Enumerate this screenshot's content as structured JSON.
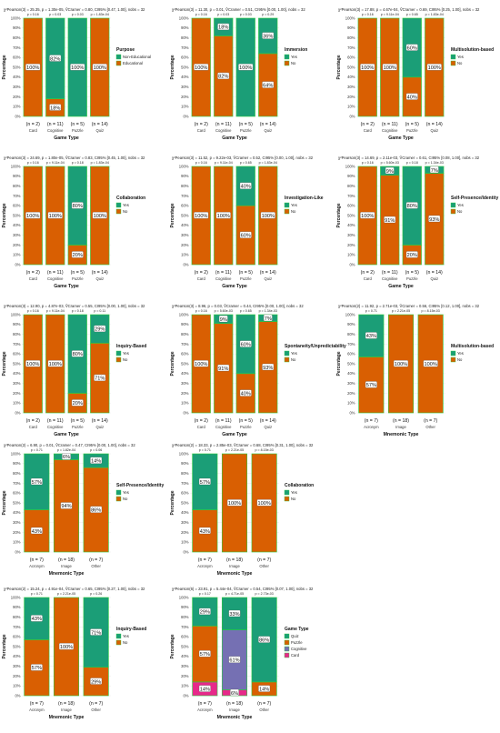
{
  "colors": {
    "Yes": "#1b9e77",
    "No": "#d95f02",
    "Quiz": "#1b9e77",
    "Puzzle": "#d95f02",
    "Cognitive": "#7570b3",
    "Card": "#e7298a",
    "Non-Educational": "#1b9e77",
    "Educational": "#d95f02",
    "bar_stroke": "#2ecc40"
  },
  "chart_data": [
    {
      "type": "bar",
      "stacked": true,
      "xlabel": "Game Type",
      "ylabel": "Percentage",
      "subtitle": "χ²Pearson(3) = 25.35, p = 1.30e-05, V̂Cramer = 0.80, CI95% [0.47, 1.00], nobs = 32",
      "categories": [
        "Card",
        "Cognitive",
        "Puzzle",
        "Quiz"
      ],
      "n_labels": [
        "(n = 2)",
        "(n = 11)",
        "(n = 5)",
        "(n = 14)"
      ],
      "p_labels": [
        "p = 0.16",
        "p = 0.03",
        "p = 0.03",
        "p = 1.83e-04"
      ],
      "legend_title": "Purpose",
      "series": [
        {
          "name": "Non-Educational",
          "values": [
            0,
            82,
            100,
            0
          ],
          "labels": [
            "",
            "82%",
            "100%",
            ""
          ]
        },
        {
          "name": "Educational",
          "values": [
            100,
            18,
            0,
            100
          ],
          "labels": [
            "100%",
            "18%",
            "",
            "100%"
          ]
        }
      ],
      "ylim": [
        0,
        100
      ],
      "yticks": [
        "0%",
        "10%",
        "20%",
        "30%",
        "40%",
        "50%",
        "60%",
        "70%",
        "80%",
        "90%",
        "100%"
      ]
    },
    {
      "type": "bar",
      "stacked": true,
      "xlabel": "Game Type",
      "ylabel": "Percentage",
      "subtitle": "χ²Pearson(3) = 11.30, p = 0.01, V̂Cramer = 0.51, CI95% [0.00, 1.00], nobs = 32",
      "categories": [
        "Card",
        "Cognitive",
        "Puzzle",
        "Quiz"
      ],
      "n_labels": [
        "(n = 2)",
        "(n = 11)",
        "(n = 5)",
        "(n = 14)"
      ],
      "p_labels": [
        "p = 0.16",
        "p = 0.03",
        "p = 0.03",
        "p = 0.29"
      ],
      "legend_title": "Immersion",
      "series": [
        {
          "name": "Yes",
          "values": [
            0,
            18,
            100,
            36
          ],
          "labels": [
            "",
            "18%",
            "100%",
            "36%"
          ]
        },
        {
          "name": "No",
          "values": [
            100,
            82,
            0,
            64
          ],
          "labels": [
            "100%",
            "82%",
            "",
            "64%"
          ]
        }
      ],
      "ylim": [
        0,
        100
      ],
      "yticks": [
        "0%",
        "10%",
        "20%",
        "30%",
        "40%",
        "50%",
        "60%",
        "70%",
        "80%",
        "90%",
        "100%"
      ]
    },
    {
      "type": "bar",
      "stacked": true,
      "xlabel": "Game Type",
      "ylabel": "Percentage",
      "subtitle": "χ²Pearson(3) = 17.88, p = 4.67e-04, V̂Cramer = 0.69, CI95% [0.25, 1.00], nobs = 32",
      "categories": [
        "Card",
        "Cognitive",
        "Puzzle",
        "Quiz"
      ],
      "n_labels": [
        "(n = 2)",
        "(n = 11)",
        "(n = 5)",
        "(n = 14)"
      ],
      "p_labels": [
        "p = 0.16",
        "p = 9.11e-04",
        "p = 0.65",
        "p = 1.83e-04"
      ],
      "legend_title": "Multisolution-based",
      "series": [
        {
          "name": "Yes",
          "values": [
            0,
            0,
            60,
            0
          ],
          "labels": [
            "",
            "",
            "60%",
            ""
          ]
        },
        {
          "name": "No",
          "values": [
            100,
            100,
            40,
            100
          ],
          "labels": [
            "100%",
            "100%",
            "40%",
            "100%"
          ]
        }
      ],
      "ylim": [
        0,
        100
      ],
      "yticks": [
        "0%",
        "10%",
        "20%",
        "30%",
        "40%",
        "50%",
        "60%",
        "70%",
        "80%",
        "90%",
        "100%"
      ]
    },
    {
      "type": "bar",
      "stacked": true,
      "xlabel": "Game Type",
      "ylabel": "Percentage",
      "subtitle": "χ²Pearson(3) = 24.69, p = 1.80e-05, V̂Cramer = 0.83, CI95% [0.45, 1.00], nobs = 32",
      "categories": [
        "Card",
        "Cognitive",
        "Puzzle",
        "Quiz"
      ],
      "n_labels": [
        "(n = 2)",
        "(n = 11)",
        "(n = 5)",
        "(n = 14)"
      ],
      "p_labels": [
        "p = 0.16",
        "p = 9.11e-04",
        "p = 0.18",
        "p = 1.83e-04"
      ],
      "legend_title": "Collaboration",
      "series": [
        {
          "name": "Yes",
          "values": [
            0,
            0,
            80,
            0
          ],
          "labels": [
            "",
            "",
            "80%",
            ""
          ]
        },
        {
          "name": "No",
          "values": [
            100,
            100,
            20,
            100
          ],
          "labels": [
            "100%",
            "100%",
            "20%",
            "100%"
          ]
        }
      ],
      "ylim": [
        0,
        100
      ],
      "yticks": [
        "0%",
        "10%",
        "20%",
        "30%",
        "40%",
        "50%",
        "60%",
        "70%",
        "80%",
        "90%",
        "100%"
      ]
    },
    {
      "type": "bar",
      "stacked": true,
      "xlabel": "Game Type",
      "ylabel": "Percentage",
      "subtitle": "χ²Pearson(3) = 11.52, p = 9.22e-03, V̂Cramer = 0.52, CI95% [0.00, 1.00], nobs = 32",
      "categories": [
        "Card",
        "Cognitive",
        "Puzzle",
        "Quiz"
      ],
      "n_labels": [
        "(n = 2)",
        "(n = 11)",
        "(n = 5)",
        "(n = 14)"
      ],
      "p_labels": [
        "p = 0.16",
        "p = 9.11e-04",
        "p = 0.65",
        "p = 1.83e-04"
      ],
      "legend_title": "Investigation-Like",
      "series": [
        {
          "name": "Yes",
          "values": [
            0,
            0,
            40,
            0
          ],
          "labels": [
            "",
            "",
            "40%",
            ""
          ]
        },
        {
          "name": "No",
          "values": [
            100,
            100,
            60,
            100
          ],
          "labels": [
            "100%",
            "100%",
            "60%",
            "100%"
          ]
        }
      ],
      "ylim": [
        0,
        100
      ],
      "yticks": [
        "0%",
        "10%",
        "20%",
        "30%",
        "40%",
        "50%",
        "60%",
        "70%",
        "80%",
        "90%",
        "100%"
      ]
    },
    {
      "type": "bar",
      "stacked": true,
      "xlabel": "Game Type",
      "ylabel": "Percentage",
      "subtitle": "χ²Pearson(3) = 14.69, p = 2.11e-03, V̂Cramer = 0.61, CI95% [0.08, 1.00], nobs = 32",
      "categories": [
        "Card",
        "Cognitive",
        "Puzzle",
        "Quiz"
      ],
      "n_labels": [
        "(n = 2)",
        "(n = 11)",
        "(n = 5)",
        "(n = 14)"
      ],
      "p_labels": [
        "p = 0.16",
        "p = 5.60e-03",
        "p = 0.18",
        "p = 1.34e-03"
      ],
      "legend_title": "Self-Presence/Identity",
      "series": [
        {
          "name": "Yes",
          "values": [
            0,
            9,
            80,
            7
          ],
          "labels": [
            "",
            "9%",
            "80%",
            "7%"
          ]
        },
        {
          "name": "No",
          "values": [
            100,
            91,
            20,
            93
          ],
          "labels": [
            "100%",
            "91%",
            "20%",
            "93%"
          ]
        }
      ],
      "ylim": [
        0,
        100
      ],
      "yticks": [
        "0%",
        "10%",
        "20%",
        "30%",
        "40%",
        "50%",
        "60%",
        "70%",
        "80%",
        "90%",
        "100%"
      ]
    },
    {
      "type": "bar",
      "stacked": true,
      "xlabel": "Game Type",
      "ylabel": "Percentage",
      "subtitle": "χ²Pearson(3) = 12.90, p = 4.87e-03, V̂Cramer = 0.55, CI95% [0.00, 1.00], nobs = 32",
      "categories": [
        "Card",
        "Cognitive",
        "Puzzle",
        "Quiz"
      ],
      "n_labels": [
        "(n = 2)",
        "(n = 11)",
        "(n = 5)",
        "(n = 14)"
      ],
      "p_labels": [
        "p = 0.16",
        "p = 9.11e-04",
        "p = 0.18",
        "p = 0.11"
      ],
      "legend_title": "Inquiry-Based",
      "series": [
        {
          "name": "Yes",
          "values": [
            0,
            0,
            80,
            29
          ],
          "labels": [
            "",
            "",
            "80%",
            "29%"
          ]
        },
        {
          "name": "No",
          "values": [
            100,
            100,
            20,
            71
          ],
          "labels": [
            "100%",
            "100%",
            "20%",
            "71%"
          ]
        }
      ],
      "ylim": [
        0,
        100
      ],
      "yticks": [
        "0%",
        "10%",
        "20%",
        "30%",
        "40%",
        "50%",
        "60%",
        "70%",
        "80%",
        "90%",
        "100%"
      ]
    },
    {
      "type": "bar",
      "stacked": true,
      "xlabel": "Game Type",
      "ylabel": "Percentage",
      "subtitle": "χ²Pearson(3) = 8.96, p = 0.03, V̂Cramer = 0.44, CI95% [0.00, 1.00], nobs = 32",
      "categories": [
        "Card",
        "Cognitive",
        "Puzzle",
        "Quiz"
      ],
      "n_labels": [
        "(n = 2)",
        "(n = 11)",
        "(n = 5)",
        "(n = 14)"
      ],
      "p_labels": [
        "p = 0.16",
        "p = 5.60e-03",
        "p = 0.65",
        "p = 1.34e-03"
      ],
      "legend_title": "Spontaneity/Unpredictability",
      "series": [
        {
          "name": "Yes",
          "values": [
            0,
            9,
            60,
            7
          ],
          "labels": [
            "",
            "9%",
            "60%",
            "7%"
          ]
        },
        {
          "name": "No",
          "values": [
            100,
            91,
            40,
            93
          ],
          "labels": [
            "100%",
            "91%",
            "40%",
            "93%"
          ]
        }
      ],
      "ylim": [
        0,
        100
      ],
      "yticks": [
        "0%",
        "10%",
        "20%",
        "30%",
        "40%",
        "50%",
        "60%",
        "70%",
        "80%",
        "90%",
        "100%"
      ]
    },
    {
      "type": "bar",
      "stacked": true,
      "xlabel": "Mnemonic Type",
      "ylabel": "Percentage",
      "subtitle": "χ²Pearson(2) = 11.92, p = 2.71e-03, V̂Cramer = 0.56, CI95% [0.12, 1.00], nobs = 32",
      "categories": [
        "Acronym",
        "Image",
        "Other"
      ],
      "n_labels": [
        "(n = 7)",
        "(n = 18)",
        "(n = 7)"
      ],
      "p_labels": [
        "p = 0.71",
        "p = 2.21e-05",
        "p = 8.15e-03"
      ],
      "legend_title": "Multisolution-based",
      "series": [
        {
          "name": "Yes",
          "values": [
            43,
            0,
            0
          ],
          "labels": [
            "43%",
            "",
            ""
          ]
        },
        {
          "name": "No",
          "values": [
            57,
            100,
            100
          ],
          "labels": [
            "57%",
            "100%",
            "100%"
          ]
        }
      ],
      "ylim": [
        0,
        100
      ],
      "yticks": [
        "0%",
        "10%",
        "20%",
        "30%",
        "40%",
        "50%",
        "60%",
        "70%",
        "80%",
        "90%",
        "100%"
      ]
    },
    {
      "type": "bar",
      "stacked": true,
      "xlabel": "Mnemonic Type",
      "ylabel": "Percentage",
      "subtitle": "χ²Pearson(2) = 6.90, p = 0.01, V̂Cramer = 0.47, CI95% [0.00, 1.00], nobs = 32",
      "categories": [
        "Acronym",
        "Image",
        "Other"
      ],
      "n_labels": [
        "(n = 7)",
        "(n = 18)",
        "(n = 7)"
      ],
      "p_labels": [
        "p = 0.71",
        "p = 1.82e-04",
        "p = 0.06"
      ],
      "legend_title": "Self-Presence/Identity",
      "series": [
        {
          "name": "Yes",
          "values": [
            57,
            6,
            14
          ],
          "labels": [
            "57%",
            "6%",
            "14%"
          ]
        },
        {
          "name": "No",
          "values": [
            43,
            94,
            86
          ],
          "labels": [
            "43%",
            "94%",
            "86%"
          ]
        }
      ],
      "ylim": [
        0,
        100
      ],
      "yticks": [
        "0%",
        "10%",
        "20%",
        "30%",
        "40%",
        "50%",
        "60%",
        "70%",
        "80%",
        "90%",
        "100%"
      ]
    },
    {
      "type": "bar",
      "stacked": true,
      "xlabel": "Mnemonic Type",
      "ylabel": "Percentage",
      "subtitle": "χ²Pearson(2) = 18.33, p = 2.85e-03, V̂Cramer = 0.68, CI95% [0.31, 1.00], nobs = 32",
      "categories": [
        "Acronym",
        "Image",
        "Other"
      ],
      "n_labels": [
        "(n = 7)",
        "(n = 18)",
        "(n = 7)"
      ],
      "p_labels": [
        "p = 0.71",
        "p = 2.21e-05",
        "p = 8.15e-03"
      ],
      "legend_title": "Collaboration",
      "series": [
        {
          "name": "Yes",
          "values": [
            57,
            0,
            0
          ],
          "labels": [
            "57%",
            "",
            ""
          ]
        },
        {
          "name": "No",
          "values": [
            43,
            100,
            100
          ],
          "labels": [
            "43%",
            "100%",
            "100%"
          ]
        }
      ],
      "ylim": [
        0,
        100
      ],
      "yticks": [
        "0%",
        "10%",
        "20%",
        "30%",
        "40%",
        "50%",
        "60%",
        "70%",
        "80%",
        "90%",
        "100%"
      ]
    },
    {
      "type": "bar",
      "stacked": true,
      "xlabel": "Mnemonic Type",
      "ylabel": "Percentage",
      "subtitle": "χ²Pearson(2) = 15.24, p = 4.91e-04, V̂Cramer = 0.65, CI95% [0.27, 1.00], nobs = 32",
      "categories": [
        "Acronym",
        "Image",
        "Other"
      ],
      "n_labels": [
        "(n = 7)",
        "(n = 18)",
        "(n = 7)"
      ],
      "p_labels": [
        "p = 0.71",
        "p = 2.21e-05",
        "p = 0.26"
      ],
      "legend_title": "Inquiry-Based",
      "series": [
        {
          "name": "Yes",
          "values": [
            43,
            0,
            71
          ],
          "labels": [
            "43%",
            "",
            "71%"
          ]
        },
        {
          "name": "No",
          "values": [
            57,
            100,
            29
          ],
          "labels": [
            "57%",
            "100%",
            "29%"
          ]
        }
      ],
      "ylim": [
        0,
        100
      ],
      "yticks": [
        "0%",
        "10%",
        "20%",
        "30%",
        "40%",
        "50%",
        "60%",
        "70%",
        "80%",
        "90%",
        "100%"
      ]
    },
    {
      "type": "bar",
      "stacked": true,
      "xlabel": "Mnemonic Type",
      "ylabel": "Percentage",
      "subtitle": "χ²Pearson(6) = 23.91, p = 5.44e-04, V̂Cramer = 0.54, CI95% [0.07, 1.00], nobs = 32",
      "categories": [
        "Acronym",
        "Image",
        "Other"
      ],
      "n_labels": [
        "(n = 7)",
        "(n = 18)",
        "(n = 7)"
      ],
      "p_labels": [
        "p = 0.17",
        "p = 4.71e-05",
        "p = 2.73e-03"
      ],
      "legend_title": "Game Type",
      "series": [
        {
          "name": "Quiz",
          "values": [
            29,
            33,
            86
          ],
          "labels": [
            "29%",
            "33%",
            "86%"
          ]
        },
        {
          "name": "Puzzle",
          "values": [
            57,
            0,
            14
          ],
          "labels": [
            "57%",
            "",
            "14%"
          ]
        },
        {
          "name": "Cognitive",
          "values": [
            0,
            61,
            0
          ],
          "labels": [
            "",
            "61%",
            ""
          ]
        },
        {
          "name": "Card",
          "values": [
            14,
            6,
            0
          ],
          "labels": [
            "14%",
            "6%",
            ""
          ]
        }
      ],
      "ylim": [
        0,
        100
      ],
      "yticks": [
        "0%",
        "10%",
        "20%",
        "30%",
        "40%",
        "50%",
        "60%",
        "70%",
        "80%",
        "90%",
        "100%"
      ]
    }
  ]
}
